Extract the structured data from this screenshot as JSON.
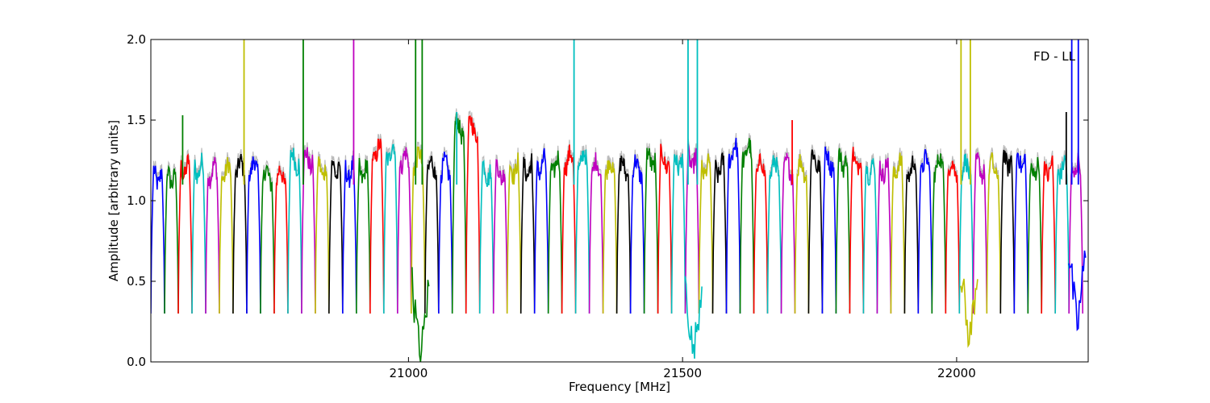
{
  "chart_data": {
    "type": "line",
    "annotation": "FD - LL",
    "xlabel": "Frequency [MHz]",
    "ylabel": "Amplitude [arbitrary units]",
    "xlim": [
      20530,
      22240
    ],
    "ylim": [
      0,
      2.0
    ],
    "xticks": [
      21000,
      21500,
      22000
    ],
    "xtick_labels": [
      "21000",
      "21500",
      "22000"
    ],
    "yticks": [
      0.0,
      0.5,
      1.0,
      1.5,
      2.0
    ],
    "ytick_labels": [
      "0.0",
      "0.5",
      "1.0",
      "1.5",
      "2.0"
    ],
    "grid": false,
    "legend": "none",
    "band_width_mhz": 50,
    "band_dip_level": 0.3,
    "reference_color": "#bbbbbb",
    "colors": {
      "b": "#0000ff",
      "g": "#008000",
      "r": "#ff0000",
      "c": "#00bfbf",
      "m": "#bf00bf",
      "y": "#bfbf00",
      "k": "#000000"
    },
    "band_starts_mhz": [
      20530,
      20580,
      20630,
      20680,
      20730,
      20780,
      20830,
      20880,
      20930,
      20980,
      21030,
      21080,
      21130,
      21180,
      21230,
      21280,
      21330,
      21380,
      21430,
      21480,
      21530,
      21580,
      21630,
      21680,
      21730,
      21780,
      21830,
      21880,
      21930,
      21980,
      22030,
      22080,
      22130,
      22180
    ],
    "band_levels": [
      1.15,
      1.2,
      1.18,
      1.2,
      1.15,
      1.25,
      1.2,
      1.18,
      1.3,
      1.25,
      1.2,
      1.45,
      1.18,
      1.2,
      1.22,
      1.25,
      1.2,
      1.2,
      1.25,
      1.25,
      1.2,
      1.3,
      1.2,
      1.2,
      1.25,
      1.25,
      1.2,
      1.2,
      1.22,
      1.2,
      1.2,
      1.25,
      1.2,
      1.2
    ],
    "sub_bands_per_band": 2,
    "sub_band_colors": [
      "b",
      "g",
      "r",
      "c",
      "m",
      "y",
      "k"
    ],
    "spikes": [
      {
        "x": 20588,
        "y": 1.53,
        "color": "g"
      },
      {
        "x": 20700,
        "y": 2.0,
        "color": "y"
      },
      {
        "x": 20808,
        "y": 2.0,
        "color": "g"
      },
      {
        "x": 20900,
        "y": 2.0,
        "color": "m"
      },
      {
        "x": 21013,
        "y": 2.0,
        "color": "g"
      },
      {
        "x": 21025,
        "y": 2.0,
        "color": "g"
      },
      {
        "x": 21088,
        "y": 1.55,
        "color": "c"
      },
      {
        "x": 21302,
        "y": 2.0,
        "color": "c"
      },
      {
        "x": 21510,
        "y": 2.0,
        "color": "c"
      },
      {
        "x": 21527,
        "y": 2.0,
        "color": "c"
      },
      {
        "x": 21700,
        "y": 1.5,
        "color": "r"
      },
      {
        "x": 22008,
        "y": 2.0,
        "color": "y"
      },
      {
        "x": 22025,
        "y": 2.0,
        "color": "y"
      },
      {
        "x": 22200,
        "y": 1.55,
        "color": "k"
      },
      {
        "x": 22210,
        "y": 2.0,
        "color": "b"
      },
      {
        "x": 22222,
        "y": 2.0,
        "color": "b"
      }
    ],
    "deep_dips": [
      {
        "x": 21022,
        "y": 0.0,
        "color": "g"
      },
      {
        "x": 21520,
        "y": 0.02,
        "color": "c"
      },
      {
        "x": 22023,
        "y": 0.1,
        "color": "y"
      },
      {
        "x": 22220,
        "y": 0.2,
        "color": "b"
      }
    ]
  }
}
